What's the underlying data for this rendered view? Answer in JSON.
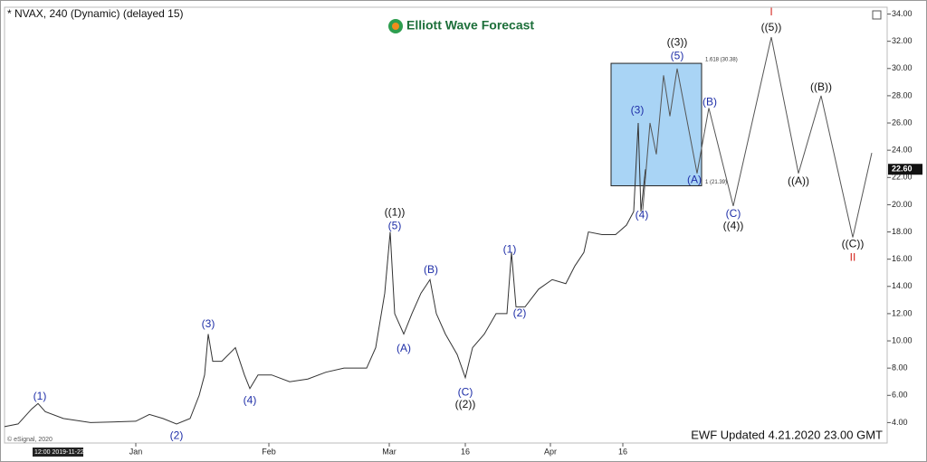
{
  "chart_data": {
    "type": "line",
    "title": "* NVAX, 240 (Dynamic) (delayed 15)",
    "logo": "Elliott Wave Forecast",
    "footer": "EWF Updated 4.21.2020 23.00 GMT",
    "copyright": "© eSignal, 2020",
    "start_time": "12:00 2019-11-22",
    "last_price": {
      "value": 22.6,
      "label": "22.60"
    },
    "xlim": [
      5,
      985
    ],
    "ylim": [
      2.5,
      34.5
    ],
    "xticks": [
      {
        "value": 150,
        "label": "Jan"
      },
      {
        "value": 297,
        "label": "Feb"
      },
      {
        "value": 430,
        "label": "Mar"
      },
      {
        "value": 514,
        "label": "16"
      },
      {
        "value": 608,
        "label": "Apr"
      },
      {
        "value": 688,
        "label": "16"
      }
    ],
    "yticks": [
      {
        "value": 4,
        "label": "4.00"
      },
      {
        "value": 6,
        "label": "6.00"
      },
      {
        "value": 8,
        "label": "8.00"
      },
      {
        "value": 10,
        "label": "10.00"
      },
      {
        "value": 12,
        "label": "12.00"
      },
      {
        "value": 14,
        "label": "14.00"
      },
      {
        "value": 16,
        "label": "16.00"
      },
      {
        "value": 18,
        "label": "18.00"
      },
      {
        "value": 20,
        "label": "20.00"
      },
      {
        "value": 22,
        "label": "22.00"
      },
      {
        "value": 24,
        "label": "24.00"
      },
      {
        "value": 26,
        "label": "26.00"
      },
      {
        "value": 28,
        "label": "28.00"
      },
      {
        "value": 30,
        "label": "30.00"
      },
      {
        "value": 32,
        "label": "32.00"
      },
      {
        "value": 34,
        "label": "34.00"
      }
    ],
    "series": [
      {
        "color": "#333333",
        "x": [
          5,
          20,
          35,
          42,
          50,
          70,
          100,
          150,
          165,
          180,
          195,
          210,
          220,
          226,
          230,
          235,
          245,
          260,
          270,
          276,
          285,
          300,
          320,
          340,
          360,
          380,
          395,
          405,
          415,
          425,
          431,
          436,
          446,
          455,
          465,
          475,
          482,
          492,
          505,
          514,
          522,
          535,
          548,
          560,
          565,
          570,
          580,
          595,
          610,
          625,
          635,
          645,
          650,
          665,
          680,
          692,
          700,
          705,
          708,
          713
        ],
        "values": [
          3.7,
          3.9,
          5.0,
          5.4,
          4.8,
          4.3,
          4.0,
          4.1,
          4.6,
          4.3,
          3.9,
          4.3,
          6.0,
          7.5,
          10.5,
          8.5,
          8.5,
          9.5,
          7.5,
          6.5,
          7.5,
          7.5,
          7.0,
          7.2,
          7.7,
          8.0,
          8.0,
          8.0,
          9.5,
          13.5,
          18.0,
          12.0,
          10.5,
          12.0,
          13.5,
          14.5,
          12.0,
          10.5,
          9.0,
          7.3,
          9.5,
          10.5,
          12.0,
          12.0,
          16.5,
          12.5,
          12.5,
          13.8,
          14.5,
          14.2,
          15.5,
          16.5,
          18.0,
          17.8,
          17.8,
          18.5,
          19.5,
          26.0,
          19.5,
          22.6
        ]
      },
      {
        "color": "#555555",
        "x": [
          710,
          718,
          725,
          733,
          740,
          748,
          770,
          783,
          810,
          852,
          882,
          907,
          942,
          963
        ],
        "values": [
          19.6,
          26.0,
          23.7,
          29.5,
          26.5,
          30.0,
          22.3,
          27.1,
          19.9,
          32.3,
          22.3,
          28.0,
          17.6,
          23.8
        ]
      }
    ],
    "box": {
      "x": [
        675,
        775
      ],
      "y": [
        21.39,
        30.38
      ],
      "color": "#a9d4f5",
      "top_label": "1.618 (30.38)",
      "bottom_label": "1 (21.39)"
    },
    "annotations": [
      {
        "text": "(1)",
        "x": 44,
        "y": 5.9,
        "color": "#1f2fa8"
      },
      {
        "text": "(2)",
        "x": 195,
        "y": 3.0,
        "color": "#1f2fa8"
      },
      {
        "text": "(3)",
        "x": 230,
        "y": 11.2,
        "color": "#1f2fa8"
      },
      {
        "text": "(4)",
        "x": 276,
        "y": 5.6,
        "color": "#1f2fa8"
      },
      {
        "text": "(5)",
        "x": 436,
        "y": 18.4,
        "color": "#1f2fa8"
      },
      {
        "text": "((1))",
        "x": 436,
        "y": 19.4,
        "color": "#111111"
      },
      {
        "text": "(A)",
        "x": 446,
        "y": 9.4,
        "color": "#1f2fa8"
      },
      {
        "text": "(B)",
        "x": 476,
        "y": 15.2,
        "color": "#1f2fa8"
      },
      {
        "text": "(C)",
        "x": 514,
        "y": 6.2,
        "color": "#1f2fa8"
      },
      {
        "text": "((2))",
        "x": 514,
        "y": 5.3,
        "color": "#111111"
      },
      {
        "text": "(1)",
        "x": 563,
        "y": 16.7,
        "color": "#1f2fa8"
      },
      {
        "text": "(2)",
        "x": 574,
        "y": 12.0,
        "color": "#1f2fa8"
      },
      {
        "text": "(3)",
        "x": 704,
        "y": 26.9,
        "color": "#1f2fa8"
      },
      {
        "text": "(4)",
        "x": 709,
        "y": 19.2,
        "color": "#1f2fa8"
      },
      {
        "text": "(5)",
        "x": 748,
        "y": 30.9,
        "color": "#1f2fa8"
      },
      {
        "text": "((3))",
        "x": 748,
        "y": 31.9,
        "color": "#111111"
      },
      {
        "text": "(A)",
        "x": 767,
        "y": 21.8,
        "color": "#1f2fa8"
      },
      {
        "text": "(B)",
        "x": 784,
        "y": 27.5,
        "color": "#1f2fa8"
      },
      {
        "text": "(C)",
        "x": 810,
        "y": 19.3,
        "color": "#1f2fa8"
      },
      {
        "text": "((4))",
        "x": 810,
        "y": 18.4,
        "color": "#111111"
      },
      {
        "text": "((5))",
        "x": 852,
        "y": 33.0,
        "color": "#111111"
      },
      {
        "text": "I",
        "x": 852,
        "y": 34.1,
        "color": "#d4241c"
      },
      {
        "text": "((A))",
        "x": 882,
        "y": 21.7,
        "color": "#111111"
      },
      {
        "text": "((B))",
        "x": 907,
        "y": 28.6,
        "color": "#111111"
      },
      {
        "text": "((C))",
        "x": 942,
        "y": 17.1,
        "color": "#111111"
      },
      {
        "text": "II",
        "x": 942,
        "y": 16.1,
        "color": "#d4241c"
      }
    ]
  }
}
